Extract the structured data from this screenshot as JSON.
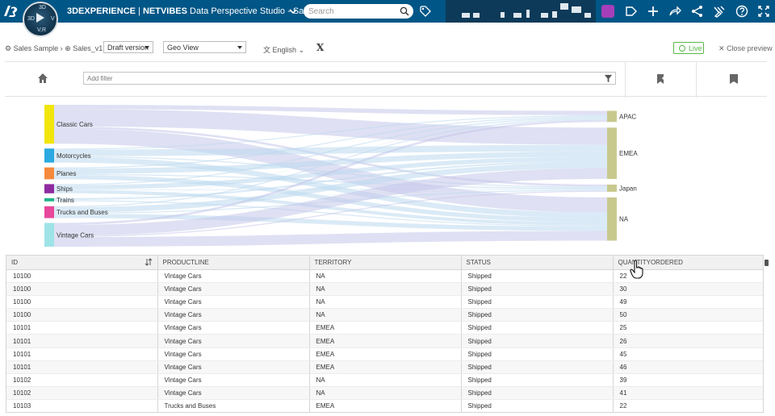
{
  "header": {
    "brand": "3DEXPERIENCE",
    "separator": " | ",
    "product": "NETVIBES",
    "app_name": " Data Perspective Studio - Sale...",
    "compass": {
      "north": "3D",
      "west": "3D",
      "east": "V",
      "south": "V,R"
    },
    "search": {
      "placeholder": "Search",
      "value": ""
    }
  },
  "toolbar": {
    "breadcrumb_root": "Sales Sample",
    "breadcrumb_sep": "›",
    "breadcrumb_item": "Sales_v1",
    "version_select": "Draft version",
    "view_select": "Geo View",
    "language": "English",
    "x_label": "X",
    "live_label": "Live",
    "close_preview_label": "Close preview"
  },
  "filter": {
    "placeholder": "Add filter",
    "value": ""
  },
  "chart_data": {
    "type": "sankey",
    "sources": [
      {
        "name": "Classic Cars",
        "color": "#f2e50b"
      },
      {
        "name": "Motorcycles",
        "color": "#2aaae0"
      },
      {
        "name": "Planes",
        "color": "#f58a3c"
      },
      {
        "name": "Ships",
        "color": "#8e2aa0"
      },
      {
        "name": "Trains",
        "color": "#20b489"
      },
      {
        "name": "Trucks and Buses",
        "color": "#e8479b"
      },
      {
        "name": "Vintage Cars",
        "color": "#9ee3e6"
      }
    ],
    "targets": [
      {
        "name": "APAC",
        "color": "#c8c98e"
      },
      {
        "name": "EMEA",
        "color": "#c8c98e"
      },
      {
        "name": "Japan",
        "color": "#c8c98e"
      },
      {
        "name": "NA",
        "color": "#c8c98e"
      }
    ],
    "flows": [
      {
        "source": "Classic Cars",
        "target": "APAC",
        "value": 4
      },
      {
        "source": "Classic Cars",
        "target": "EMEA",
        "value": 16
      },
      {
        "source": "Classic Cars",
        "target": "Japan",
        "value": 2
      },
      {
        "source": "Classic Cars",
        "target": "NA",
        "value": 14
      },
      {
        "source": "Motorcycles",
        "target": "APAC",
        "value": 1
      },
      {
        "source": "Motorcycles",
        "target": "EMEA",
        "value": 6
      },
      {
        "source": "Motorcycles",
        "target": "Japan",
        "value": 1
      },
      {
        "source": "Motorcycles",
        "target": "NA",
        "value": 5
      },
      {
        "source": "Planes",
        "target": "APAC",
        "value": 1
      },
      {
        "source": "Planes",
        "target": "EMEA",
        "value": 5
      },
      {
        "source": "Planes",
        "target": "Japan",
        "value": 1
      },
      {
        "source": "Planes",
        "target": "NA",
        "value": 4
      },
      {
        "source": "Ships",
        "target": "APAC",
        "value": 1
      },
      {
        "source": "Ships",
        "target": "EMEA",
        "value": 4
      },
      {
        "source": "Ships",
        "target": "Japan",
        "value": 0.5
      },
      {
        "source": "Ships",
        "target": "NA",
        "value": 3
      },
      {
        "source": "Trains",
        "target": "APAC",
        "value": 0.3
      },
      {
        "source": "Trains",
        "target": "EMEA",
        "value": 1.5
      },
      {
        "source": "Trains",
        "target": "Japan",
        "value": 0.2
      },
      {
        "source": "Trains",
        "target": "NA",
        "value": 1
      },
      {
        "source": "Trucks and Buses",
        "target": "APAC",
        "value": 1
      },
      {
        "source": "Trucks and Buses",
        "target": "EMEA",
        "value": 5
      },
      {
        "source": "Trucks and Buses",
        "target": "Japan",
        "value": 1
      },
      {
        "source": "Trucks and Buses",
        "target": "NA",
        "value": 4
      },
      {
        "source": "Vintage Cars",
        "target": "APAC",
        "value": 2
      },
      {
        "source": "Vintage Cars",
        "target": "EMEA",
        "value": 10
      },
      {
        "source": "Vintage Cars",
        "target": "Japan",
        "value": 1
      },
      {
        "source": "Vintage Cars",
        "target": "NA",
        "value": 9
      }
    ]
  },
  "table": {
    "columns": [
      "ID",
      "PRODUCTLINE",
      "TERRITORY",
      "STATUS",
      "QUANTITYORDERED"
    ],
    "rows": [
      [
        "10100",
        "Vintage Cars",
        "NA",
        "Shipped",
        "22"
      ],
      [
        "10100",
        "Vintage Cars",
        "NA",
        "Shipped",
        "30"
      ],
      [
        "10100",
        "Vintage Cars",
        "NA",
        "Shipped",
        "49"
      ],
      [
        "10100",
        "Vintage Cars",
        "NA",
        "Shipped",
        "50"
      ],
      [
        "10101",
        "Vintage Cars",
        "EMEA",
        "Shipped",
        "25"
      ],
      [
        "10101",
        "Vintage Cars",
        "EMEA",
        "Shipped",
        "26"
      ],
      [
        "10101",
        "Vintage Cars",
        "EMEA",
        "Shipped",
        "45"
      ],
      [
        "10101",
        "Vintage Cars",
        "EMEA",
        "Shipped",
        "46"
      ],
      [
        "10102",
        "Vintage Cars",
        "NA",
        "Shipped",
        "39"
      ],
      [
        "10102",
        "Vintage Cars",
        "NA",
        "Shipped",
        "41"
      ],
      [
        "10103",
        "Trucks and Buses",
        "EMEA",
        "Shipped",
        "22"
      ]
    ]
  },
  "icons": {
    "brand": "ds-logo-icon",
    "compass": "compass-icon",
    "search": "search-icon",
    "tag": "tag-icon",
    "add_content": "add-content-icon",
    "plus": "plus-icon",
    "share": "share-icon",
    "network": "network-icon",
    "tools": "tools-icon",
    "help": "help-icon",
    "fullscreen": "fullscreen-icon"
  }
}
